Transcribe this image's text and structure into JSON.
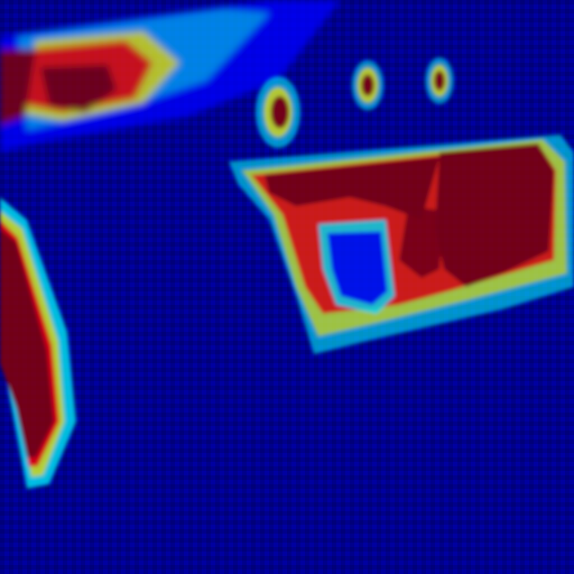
{
  "image": {
    "kind": "heatmap-overlay",
    "colormap": "jet",
    "palette": {
      "deep_blue": "#00008b",
      "blue": "#0000ff",
      "cyan": "#00ffff",
      "yellow": "#ffff00",
      "orange": "#ff8000",
      "red": "#ff0000",
      "dark_red": "#8b0000"
    }
  }
}
